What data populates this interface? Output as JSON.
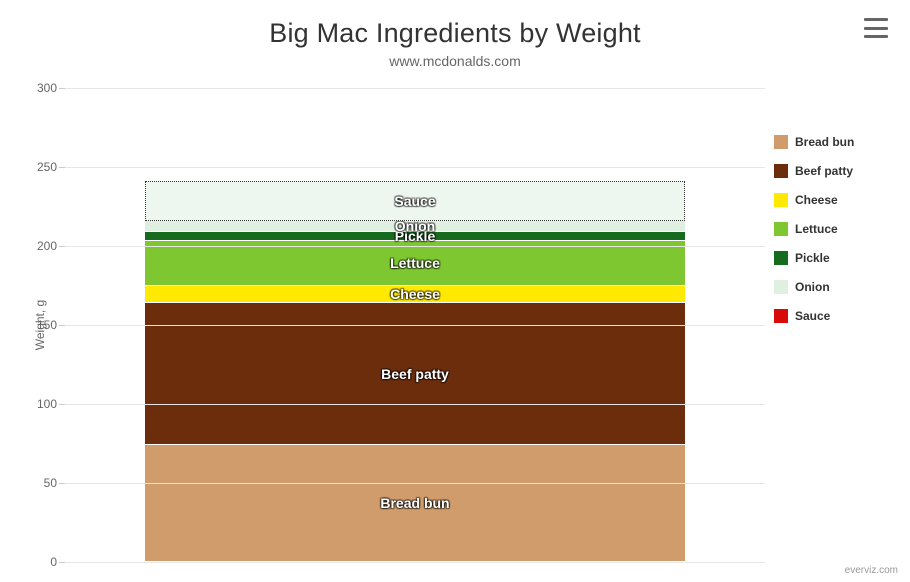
{
  "chart": {
    "type": "stacked-area-single-category",
    "title": "Big Mac Ingredients by Weight",
    "subtitle": "www.mcdonalds.com",
    "title_fontsize": 27,
    "subtitle_fontsize": 14,
    "title_color": "#333333",
    "subtitle_color": "#666666",
    "background_color": "#ffffff",
    "grid_color": "#e6e6e6",
    "credit": "everviz.com",
    "y_axis": {
      "label": "Weight, g",
      "min": 0,
      "max": 300,
      "tick_step": 50,
      "ticks": [
        0,
        50,
        100,
        150,
        200,
        250,
        300
      ],
      "label_fontsize": 12,
      "tick_fontsize": 12,
      "tick_color": "#666666"
    },
    "series": [
      {
        "name": "Bread bun",
        "value": 74,
        "color": "#d19c6b",
        "pattern": "solid"
      },
      {
        "name": "Beef patty",
        "value": 90,
        "color": "#6b2d0c",
        "pattern": "solid"
      },
      {
        "name": "Cheese",
        "value": 11,
        "color": "#ffe900",
        "pattern": "solid"
      },
      {
        "name": "Lettuce",
        "value": 28,
        "color": "#7ec731",
        "pattern": "solid"
      },
      {
        "name": "Pickle",
        "value": 6,
        "color": "#166b1e",
        "pattern": "solid"
      },
      {
        "name": "Onion",
        "value": 7,
        "color": "#e0f0e0",
        "pattern": "solid"
      },
      {
        "name": "Sauce",
        "value": 25,
        "color": "#d90a0a",
        "pattern": "dotted-outline-transparent",
        "fill_tint": "#eef7ef"
      }
    ],
    "segment_label_color": "#ffffff",
    "segment_label_fontsize": 14
  },
  "menu": {
    "tooltip": "Chart context menu"
  }
}
